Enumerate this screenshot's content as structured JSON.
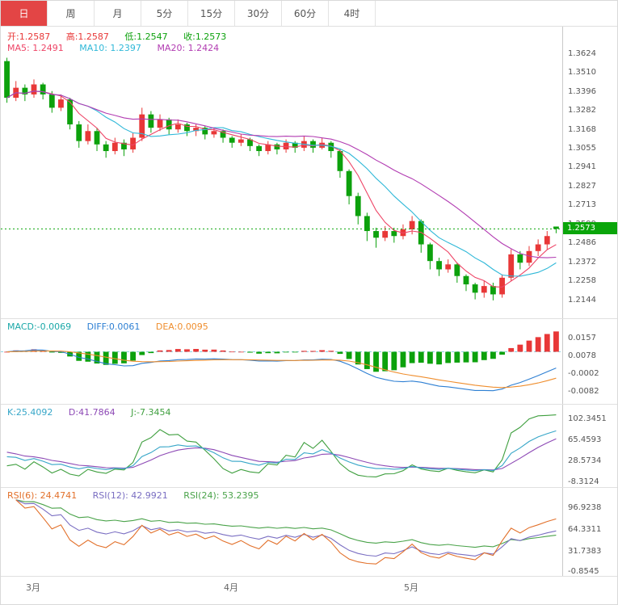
{
  "colors": {
    "up": "#e83737",
    "down": "#0ca10c",
    "accent": "#e34545",
    "last_price_line": "#0aa50a",
    "axis_text": "#555555",
    "grid": "#e0e0e0"
  },
  "toolbar": {
    "tabs": [
      {
        "label": "日",
        "active": true
      },
      {
        "label": "周",
        "active": false
      },
      {
        "label": "月",
        "active": false
      },
      {
        "label": "5分",
        "active": false
      },
      {
        "label": "15分",
        "active": false
      },
      {
        "label": "30分",
        "active": false
      },
      {
        "label": "60分",
        "active": false
      },
      {
        "label": "4时",
        "active": false
      }
    ]
  },
  "main_chart": {
    "ohlc_header": {
      "open": "开:1.2587",
      "high": "高:1.2587",
      "low": "低:1.2547",
      "close": "收:1.2573"
    },
    "ma_header": {
      "ma5": "MA5: 1.2491",
      "ma10": "MA10: 1.2397",
      "ma20": "MA20: 1.2424"
    },
    "badge": "1.2573"
  },
  "macd_panel": {
    "header": {
      "macd": "MACD:-0.0069",
      "diff": "DIFF:0.0061",
      "dea": "DEA:0.0095"
    }
  },
  "kdj_panel": {
    "header": {
      "k": "K:25.4092",
      "d": "D:41.7864",
      "j": "J:-7.3454"
    }
  },
  "rsi_panel": {
    "header": {
      "rsi6": "RSI(6): 24.4741",
      "rsi12": "RSI(12): 42.9921",
      "rsi24": "RSI(24): 53.2395"
    }
  },
  "chart_data": [
    {
      "type": "candlestick",
      "name": "GBPUSD-daily-price",
      "x_labels": [
        "3月",
        "4月",
        "5月"
      ],
      "x_label_indices": [
        3,
        25,
        45
      ],
      "y_ticks": [
        "1.3624",
        "1.3510",
        "1.3396",
        "1.3282",
        "1.3168",
        "1.3055",
        "1.2941",
        "1.2827",
        "1.2713",
        "1.2599",
        "1.2486",
        "1.2372",
        "1.2258",
        "1.2144"
      ],
      "axis_range": [
        1.2144,
        1.3624
      ],
      "last_price": 1.2573,
      "last_ohlc": {
        "open": 1.2587,
        "high": 1.2587,
        "low": 1.2547,
        "close": 1.2573
      },
      "overlays": [
        {
          "name": "MA5",
          "period": 5,
          "value": 1.2491,
          "color": "#ee4466"
        },
        {
          "name": "MA10",
          "period": 10,
          "value": 1.2397,
          "color": "#2fb8d8"
        },
        {
          "name": "MA20",
          "period": 20,
          "value": 1.2424,
          "color": "#b23cb2"
        }
      ],
      "candles_ohlc": [
        [
          1.358,
          1.36,
          1.333,
          1.336
        ],
        [
          1.336,
          1.346,
          1.334,
          1.342
        ],
        [
          1.342,
          1.344,
          1.334,
          1.338
        ],
        [
          1.338,
          1.347,
          1.336,
          1.344
        ],
        [
          1.344,
          1.345,
          1.335,
          1.338
        ],
        [
          1.338,
          1.34,
          1.327,
          1.33
        ],
        [
          1.33,
          1.338,
          1.328,
          1.335
        ],
        [
          1.335,
          1.336,
          1.317,
          1.32
        ],
        [
          1.32,
          1.322,
          1.306,
          1.31
        ],
        [
          1.31,
          1.32,
          1.308,
          1.316
        ],
        [
          1.316,
          1.318,
          1.304,
          1.308
        ],
        [
          1.308,
          1.31,
          1.3,
          1.304
        ],
        [
          1.304,
          1.312,
          1.302,
          1.309
        ],
        [
          1.309,
          1.311,
          1.301,
          1.305
        ],
        [
          1.305,
          1.315,
          1.303,
          1.312
        ],
        [
          1.312,
          1.33,
          1.31,
          1.326
        ],
        [
          1.326,
          1.328,
          1.315,
          1.318
        ],
        [
          1.318,
          1.326,
          1.316,
          1.323
        ],
        [
          1.323,
          1.324,
          1.314,
          1.317
        ],
        [
          1.317,
          1.323,
          1.315,
          1.32
        ],
        [
          1.32,
          1.321,
          1.313,
          1.316
        ],
        [
          1.316,
          1.32,
          1.313,
          1.318
        ],
        [
          1.318,
          1.319,
          1.311,
          1.314
        ],
        [
          1.314,
          1.318,
          1.312,
          1.316
        ],
        [
          1.316,
          1.317,
          1.309,
          1.312
        ],
        [
          1.312,
          1.313,
          1.306,
          1.309
        ],
        [
          1.309,
          1.314,
          1.307,
          1.311
        ],
        [
          1.311,
          1.312,
          1.304,
          1.307
        ],
        [
          1.307,
          1.308,
          1.301,
          1.304
        ],
        [
          1.304,
          1.31,
          1.302,
          1.308
        ],
        [
          1.308,
          1.309,
          1.302,
          1.305
        ],
        [
          1.305,
          1.311,
          1.303,
          1.309
        ],
        [
          1.309,
          1.31,
          1.303,
          1.306
        ],
        [
          1.306,
          1.313,
          1.304,
          1.31
        ],
        [
          1.31,
          1.311,
          1.303,
          1.306
        ],
        [
          1.306,
          1.312,
          1.305,
          1.309
        ],
        [
          1.309,
          1.31,
          1.3,
          1.304
        ],
        [
          1.304,
          1.305,
          1.288,
          1.292
        ],
        [
          1.292,
          1.293,
          1.272,
          1.277
        ],
        [
          1.277,
          1.279,
          1.26,
          1.265
        ],
        [
          1.265,
          1.267,
          1.25,
          1.256
        ],
        [
          1.256,
          1.258,
          1.246,
          1.252
        ],
        [
          1.252,
          1.259,
          1.25,
          1.256
        ],
        [
          1.256,
          1.258,
          1.249,
          1.253
        ],
        [
          1.253,
          1.26,
          1.251,
          1.257
        ],
        [
          1.257,
          1.265,
          1.254,
          1.262
        ],
        [
          1.262,
          1.263,
          1.243,
          1.248
        ],
        [
          1.248,
          1.249,
          1.233,
          1.238
        ],
        [
          1.238,
          1.24,
          1.229,
          1.233
        ],
        [
          1.233,
          1.239,
          1.231,
          1.236
        ],
        [
          1.236,
          1.237,
          1.225,
          1.229
        ],
        [
          1.229,
          1.23,
          1.22,
          1.224
        ],
        [
          1.224,
          1.225,
          1.215,
          1.219
        ],
        [
          1.219,
          1.226,
          1.216,
          1.223
        ],
        [
          1.223,
          1.225,
          1.2144,
          1.218
        ],
        [
          1.218,
          1.23,
          1.216,
          1.228
        ],
        [
          1.228,
          1.245,
          1.226,
          1.242
        ],
        [
          1.242,
          1.244,
          1.233,
          1.237
        ],
        [
          1.237,
          1.247,
          1.235,
          1.244
        ],
        [
          1.244,
          1.251,
          1.241,
          1.248
        ],
        [
          1.248,
          1.256,
          1.245,
          1.253
        ],
        [
          1.2587,
          1.2587,
          1.2547,
          1.2573
        ]
      ]
    },
    {
      "type": "macd-histogram",
      "name": "macd",
      "y_ticks": [
        "0.0157",
        "0.0078",
        "-0.0002",
        "-0.0082"
      ],
      "values": {
        "macd": -0.0069,
        "diff": 0.0061,
        "dea": 0.0095
      },
      "colors": {
        "macd_label": "#1ba8a8",
        "diff": "#2d7fd3",
        "dea": "#ef8e2e",
        "zero_line": "#8ed4e4"
      }
    },
    {
      "type": "line",
      "name": "kdj",
      "y_ticks": [
        "102.3451",
        "65.4593",
        "28.5734",
        "-8.3124"
      ],
      "values": {
        "k": 25.4092,
        "d": 41.7864,
        "j": -7.3454
      },
      "colors": {
        "k": "#36a6c8",
        "d": "#8d49b5",
        "j": "#3f9f3f"
      }
    },
    {
      "type": "line",
      "name": "rsi",
      "y_ticks": [
        "96.9238",
        "64.3311",
        "31.7383",
        "-0.8545"
      ],
      "values": {
        "rsi6": 24.4741,
        "rsi12": 42.9921,
        "rsi24": 53.2395
      },
      "colors": {
        "rsi6": "#e2702a",
        "rsi12": "#7a6ec2",
        "rsi24": "#4aa34a"
      }
    }
  ]
}
